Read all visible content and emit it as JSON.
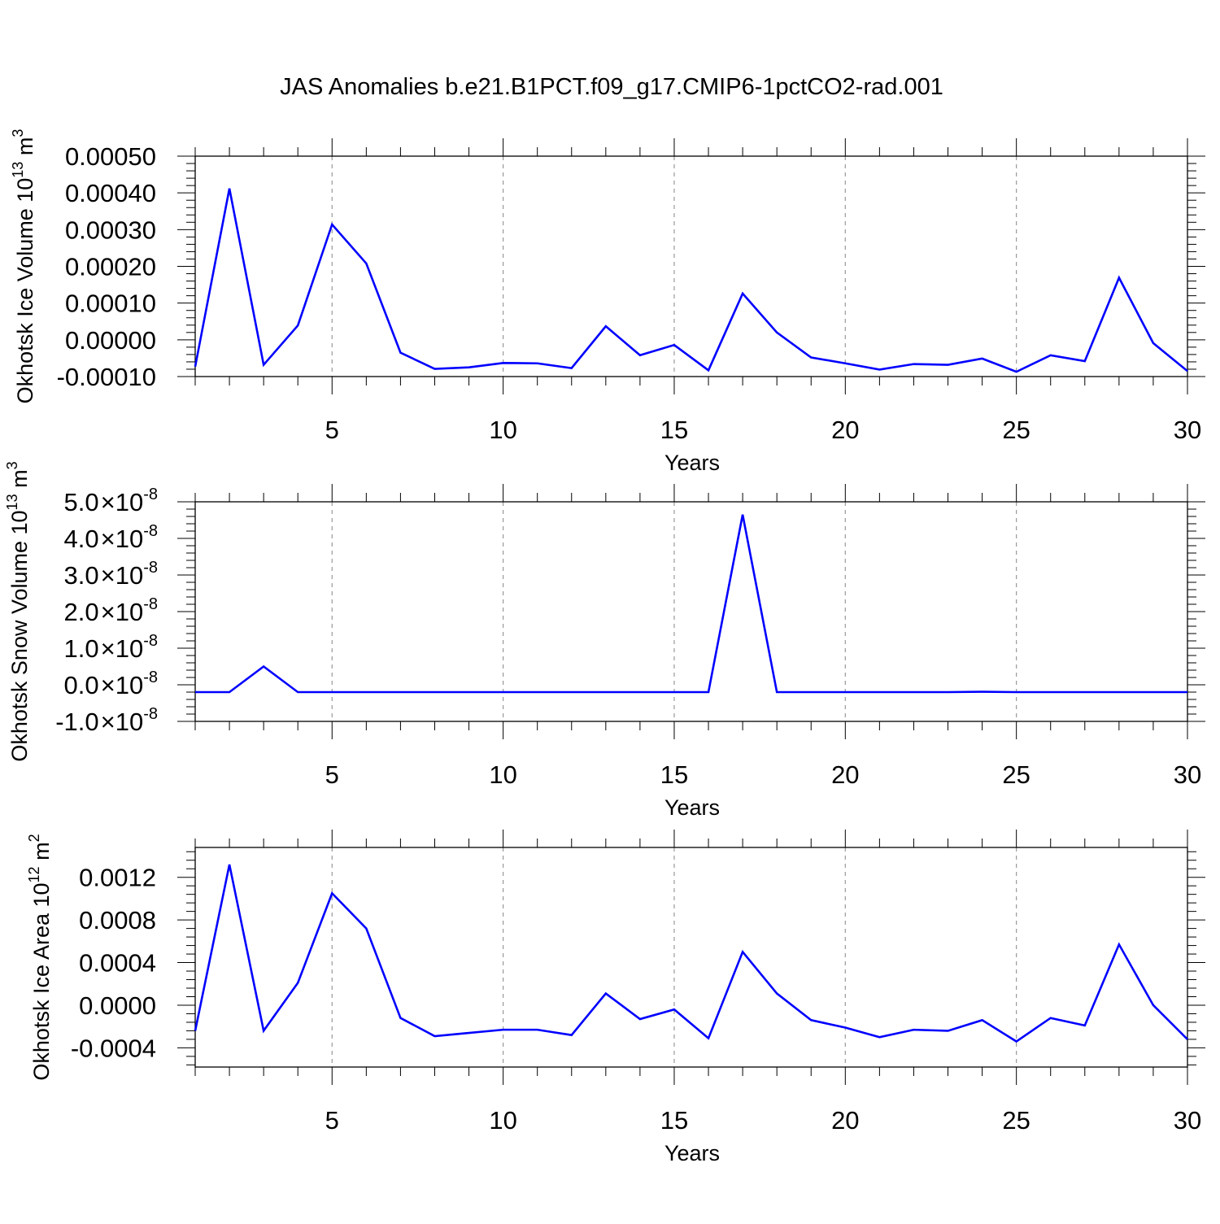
{
  "title": "JAS Anomalies b.e21.B1PCT.f09_g17.CMIP6-1pctCO2-rad.001",
  "colors": {
    "line": "#0000ff",
    "axis": "#000000",
    "grid": "#999999",
    "background": "#ffffff"
  },
  "chart_data": [
    {
      "type": "line",
      "ylabel": {
        "main": "Okhotsk Ice Volume 10",
        "exponent": "13",
        "unit": " m",
        "unit_exponent": "3"
      },
      "xlabel": "Years",
      "xlim": [
        1,
        30
      ],
      "ylim": [
        -0.0001,
        0.0005
      ],
      "x_ticks": [
        5,
        10,
        15,
        20,
        25,
        30
      ],
      "x_tick_labels": [
        "5",
        "10",
        "15",
        "20",
        "25",
        "30"
      ],
      "y_ticks": [
        -0.0001,
        0.0,
        0.0001,
        0.0002,
        0.0003,
        0.0004,
        0.0005
      ],
      "y_tick_labels": [
        "-0.00010",
        "0.00000",
        "0.00010",
        "0.00020",
        "0.00030",
        "0.00040",
        "0.00050"
      ],
      "y_label_format": "plain",
      "grid": "vertical dashed",
      "x": [
        1,
        2,
        3,
        4,
        5,
        6,
        7,
        8,
        9,
        10,
        11,
        12,
        13,
        14,
        15,
        16,
        17,
        18,
        19,
        20,
        21,
        22,
        23,
        24,
        25,
        26,
        27,
        28,
        29,
        30
      ],
      "series": [
        {
          "values": [
            -7.3e-05,
            0.000412,
            -6.8e-05,
            3.9e-05,
            0.000314,
            0.000208,
            -3.5e-05,
            -7.9e-05,
            -7.5e-05,
            -6.3e-05,
            -6.4e-05,
            -7.7e-05,
            3.7e-05,
            -4.2e-05,
            -1.4e-05,
            -8.3e-05,
            0.000126,
            2e-05,
            -4.8e-05,
            -6.4e-05,
            -8.1e-05,
            -6.6e-05,
            -6.8e-05,
            -5.1e-05,
            -8.7e-05,
            -4.2e-05,
            -5.8e-05,
            0.000169,
            -9e-06,
            -8.5e-05
          ]
        }
      ]
    },
    {
      "type": "line",
      "ylabel": {
        "main": "Okhotsk Snow Volume 10",
        "exponent": "13",
        "unit": " m",
        "unit_exponent": "3"
      },
      "xlabel": "Years",
      "xlim": [
        1,
        30
      ],
      "ylim": [
        -1e-08,
        5e-08
      ],
      "x_ticks": [
        5,
        10,
        15,
        20,
        25,
        30
      ],
      "x_tick_labels": [
        "5",
        "10",
        "15",
        "20",
        "25",
        "30"
      ],
      "y_ticks": [
        -1e-08,
        0.0,
        1e-08,
        2e-08,
        3e-08,
        4e-08,
        5e-08
      ],
      "y_tick_labels": [
        "-1.0",
        "0.0",
        "1.0",
        "2.0",
        "3.0",
        "4.0",
        "5.0"
      ],
      "y_label_format": "scientific",
      "y_label_base": "10",
      "y_label_exponent": "-8",
      "grid": "vertical dashed",
      "x": [
        1,
        2,
        3,
        4,
        5,
        6,
        7,
        8,
        9,
        10,
        11,
        12,
        13,
        14,
        15,
        16,
        17,
        18,
        19,
        20,
        21,
        22,
        23,
        24,
        25,
        26,
        27,
        28,
        29,
        30
      ],
      "series": [
        {
          "values": [
            -2e-09,
            -2e-09,
            5e-09,
            -2e-09,
            -2e-09,
            -2e-09,
            -2e-09,
            -2e-09,
            -2e-09,
            -2e-09,
            -2e-09,
            -2e-09,
            -2e-09,
            -2e-09,
            -2e-09,
            -2e-09,
            4.65e-08,
            -2e-09,
            -2e-09,
            -2e-09,
            -2e-09,
            -2e-09,
            -2e-09,
            -1.9e-09,
            -2e-09,
            -2e-09,
            -2e-09,
            -2e-09,
            -2e-09,
            -2e-09
          ]
        }
      ]
    },
    {
      "type": "line",
      "ylabel": {
        "main": "Okhotsk Ice Area 10",
        "exponent": "12",
        "unit": " m",
        "unit_exponent": "2"
      },
      "xlabel": "Years",
      "xlim": [
        1,
        30
      ],
      "ylim": [
        -0.00058,
        0.00148
      ],
      "x_ticks": [
        5,
        10,
        15,
        20,
        25,
        30
      ],
      "x_tick_labels": [
        "5",
        "10",
        "15",
        "20",
        "25",
        "30"
      ],
      "y_ticks": [
        -0.0004,
        0.0,
        0.0004,
        0.0008,
        0.0012
      ],
      "y_tick_labels": [
        "-0.0004",
        "0.0000",
        "0.0004",
        "0.0008",
        "0.0012"
      ],
      "y_label_format": "plain",
      "grid": "vertical dashed",
      "x": [
        1,
        2,
        3,
        4,
        5,
        6,
        7,
        8,
        9,
        10,
        11,
        12,
        13,
        14,
        15,
        16,
        17,
        18,
        19,
        20,
        21,
        22,
        23,
        24,
        25,
        26,
        27,
        28,
        29,
        30
      ],
      "series": [
        {
          "values": [
            -0.00024,
            0.00132,
            -0.00024,
            0.00021,
            0.00105,
            0.00072,
            -0.00012,
            -0.00029,
            -0.00026,
            -0.00023,
            -0.00023,
            -0.00028,
            0.00011,
            -0.00013,
            -4e-05,
            -0.00031,
            0.0005,
            0.00011,
            -0.00014,
            -0.00021,
            -0.0003,
            -0.00023,
            -0.00024,
            -0.00014,
            -0.00034,
            -0.00012,
            -0.00019,
            0.00057,
            0.0,
            -0.00032
          ]
        }
      ]
    }
  ]
}
